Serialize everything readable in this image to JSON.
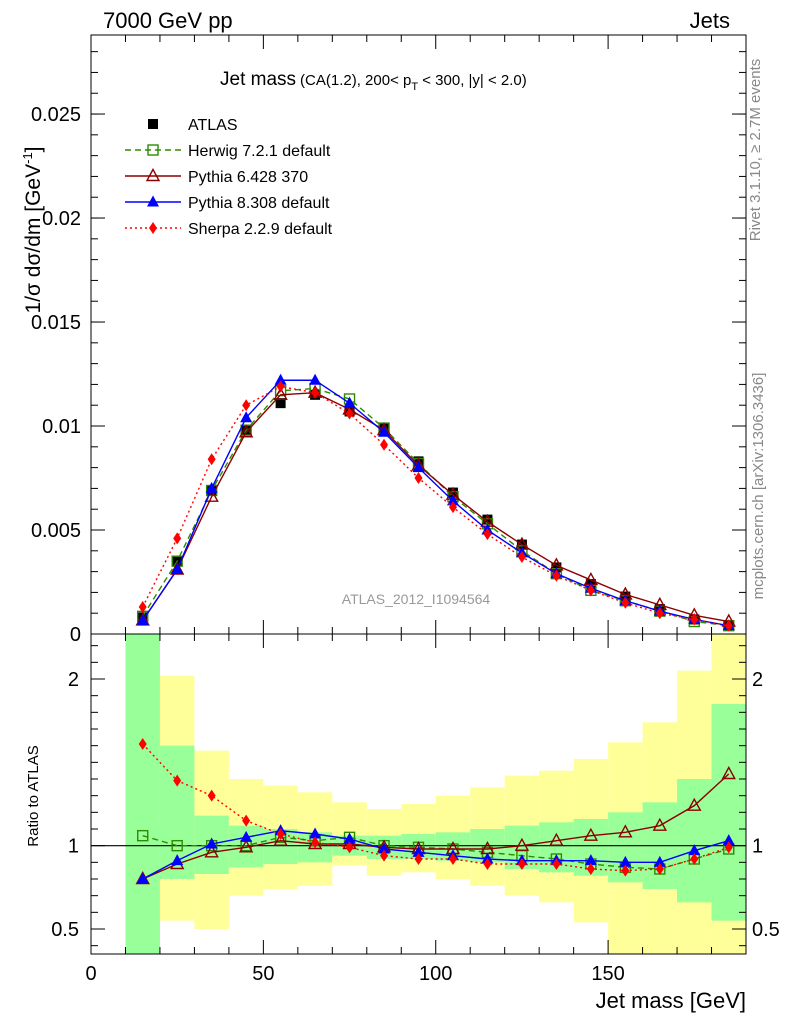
{
  "header": {
    "left": "7000 GeV pp",
    "right": "Jets"
  },
  "side_labels": {
    "rivet": "Rivet 3.1.10, ≥ 2.7M events",
    "mcplots": "mcplots.cern.ch [arXiv:1306.3436]"
  },
  "watermark": "ATLAS_2012_I1094564",
  "chart_data": [
    {
      "type": "line",
      "panel": "main",
      "title": "Jet mass",
      "subtitle_parts": {
        "a": "(CA(1.2), 200< p",
        "sub": "T",
        "b": " < 300, |y| < 2.0)"
      },
      "xlabel": "Jet mass [GeV]",
      "ylabel": "1/σ dσ/dm [GeV",
      "ylabel_sup": "-1",
      "ylabel_close": "]",
      "xlim": [
        0,
        190
      ],
      "ylim": [
        0,
        0.0288
      ],
      "y_ticks": [
        0,
        0.005,
        0.01,
        0.015,
        0.02,
        0.025
      ],
      "y_tick_labels": [
        "0",
        "0.005",
        "0.01",
        "0.015",
        "0.02",
        "0.025"
      ],
      "x_ticks": [
        0,
        50,
        100,
        150
      ],
      "x_tick_labels": [
        "0",
        "50",
        "100",
        "150"
      ],
      "legend_position": "top-left",
      "x": [
        15,
        25,
        35,
        45,
        55,
        65,
        75,
        85,
        95,
        105,
        115,
        125,
        135,
        145,
        155,
        165,
        175,
        185
      ],
      "series": [
        {
          "name": "ATLAS",
          "color": "#000000",
          "marker": "square",
          "line": "none",
          "values": [
            0.0008,
            0.0035,
            0.0069,
            0.0098,
            0.0111,
            0.0115,
            0.0107,
            0.0099,
            0.0083,
            0.0068,
            0.0055,
            0.0043,
            0.0032,
            0.0024,
            0.0018,
            0.0012,
            0.0007,
            0.0004
          ]
        },
        {
          "name": "Herwig 7.2.1 default",
          "color": "#2e8b00",
          "marker": "open-square",
          "line": "dashed",
          "values": [
            0.00085,
            0.0035,
            0.0069,
            0.0098,
            0.0117,
            0.0118,
            0.0113,
            0.0099,
            0.0082,
            0.0066,
            0.0053,
            0.004,
            0.0029,
            0.0021,
            0.0016,
            0.0011,
            0.0006,
            0.0004
          ]
        },
        {
          "name": "Pythia 6.428 370",
          "color": "#8b0000",
          "marker": "open-triangle",
          "line": "solid",
          "values": [
            0.00065,
            0.0031,
            0.0066,
            0.0097,
            0.0115,
            0.0116,
            0.0108,
            0.0098,
            0.0081,
            0.0067,
            0.0054,
            0.0043,
            0.0033,
            0.0026,
            0.0019,
            0.0014,
            0.0009,
            0.0006
          ]
        },
        {
          "name": "Pythia 8.308 default",
          "color": "#0000ff",
          "marker": "triangle",
          "line": "solid",
          "values": [
            0.00065,
            0.0031,
            0.007,
            0.0104,
            0.0122,
            0.0122,
            0.0111,
            0.0097,
            0.008,
            0.0064,
            0.005,
            0.0039,
            0.0029,
            0.0022,
            0.0016,
            0.0011,
            0.0007,
            0.0004
          ]
        },
        {
          "name": "Sherpa 2.2.9 default",
          "color": "#ff0000",
          "marker": "diamond",
          "line": "dotted",
          "values": [
            0.0013,
            0.0046,
            0.0084,
            0.011,
            0.0119,
            0.0116,
            0.0106,
            0.0091,
            0.0075,
            0.0061,
            0.0048,
            0.0037,
            0.0028,
            0.0021,
            0.0015,
            0.001,
            0.0007,
            0.0004
          ]
        }
      ]
    },
    {
      "type": "line",
      "panel": "ratio",
      "ylabel": "Ratio to ATLAS",
      "xlim": [
        0,
        190
      ],
      "ylim": [
        0.35,
        2.27
      ],
      "y_ticks": [
        0.5,
        1,
        2
      ],
      "y_tick_labels": [
        "0.5",
        "1",
        "2"
      ],
      "reference_line": 1,
      "bins": [
        [
          10,
          20
        ],
        [
          20,
          30
        ],
        [
          30,
          40
        ],
        [
          40,
          50
        ],
        [
          50,
          60
        ],
        [
          60,
          70
        ],
        [
          70,
          80
        ],
        [
          80,
          90
        ],
        [
          90,
          100
        ],
        [
          100,
          110
        ],
        [
          110,
          120
        ],
        [
          120,
          130
        ],
        [
          130,
          140
        ],
        [
          140,
          150
        ],
        [
          150,
          160
        ],
        [
          160,
          170
        ],
        [
          170,
          180
        ],
        [
          180,
          190
        ]
      ],
      "band_inner": [
        [
          0.35,
          2.27
        ],
        [
          0.8,
          1.6
        ],
        [
          0.83,
          1.18
        ],
        [
          0.87,
          1.12
        ],
        [
          0.89,
          1.1
        ],
        [
          0.9,
          1.08
        ],
        [
          0.94,
          1.06
        ],
        [
          0.92,
          1.06
        ],
        [
          0.92,
          1.07
        ],
        [
          0.91,
          1.08
        ],
        [
          0.9,
          1.1
        ],
        [
          0.86,
          1.12
        ],
        [
          0.84,
          1.14
        ],
        [
          0.82,
          1.16
        ],
        [
          0.78,
          1.2
        ],
        [
          0.74,
          1.26
        ],
        [
          0.66,
          1.4
        ],
        [
          0.55,
          1.85
        ]
      ],
      "band_outer": [
        [
          0.35,
          2.27
        ],
        [
          0.55,
          2.02
        ],
        [
          0.5,
          1.57
        ],
        [
          0.7,
          1.4
        ],
        [
          0.74,
          1.36
        ],
        [
          0.76,
          1.32
        ],
        [
          0.88,
          1.26
        ],
        [
          0.82,
          1.22
        ],
        [
          0.84,
          1.25
        ],
        [
          0.8,
          1.3
        ],
        [
          0.76,
          1.35
        ],
        [
          0.7,
          1.42
        ],
        [
          0.66,
          1.45
        ],
        [
          0.54,
          1.52
        ],
        [
          0.35,
          1.62
        ],
        [
          0.35,
          1.74
        ],
        [
          0.35,
          2.05
        ],
        [
          0.35,
          2.27
        ]
      ],
      "band_colors": {
        "outer": "#ffff99",
        "inner": "#99ff99"
      },
      "x": [
        15,
        25,
        35,
        45,
        55,
        65,
        75,
        85,
        95,
        105,
        115,
        125,
        135,
        145,
        155,
        165,
        175,
        185
      ],
      "series": [
        {
          "name": "Herwig 7.2.1 default",
          "color": "#2e8b00",
          "marker": "open-square",
          "line": "dashed",
          "values": [
            1.06,
            1.0,
            1.0,
            1.0,
            1.05,
            1.03,
            1.05,
            1.0,
            0.99,
            0.98,
            0.96,
            0.94,
            0.92,
            0.89,
            0.87,
            0.86,
            0.92,
            0.98
          ]
        },
        {
          "name": "Pythia 6.428 370",
          "color": "#8b0000",
          "marker": "open-triangle",
          "line": "solid",
          "values": [
            0.8,
            0.89,
            0.96,
            0.99,
            1.03,
            1.01,
            1.01,
            0.99,
            0.98,
            0.98,
            0.98,
            1.0,
            1.03,
            1.06,
            1.08,
            1.12,
            1.24,
            1.43
          ]
        },
        {
          "name": "Pythia 8.308 default",
          "color": "#0000ff",
          "marker": "triangle",
          "line": "solid",
          "values": [
            0.8,
            0.91,
            1.01,
            1.05,
            1.09,
            1.07,
            1.04,
            0.98,
            0.96,
            0.94,
            0.92,
            0.91,
            0.91,
            0.91,
            0.9,
            0.9,
            0.97,
            1.03
          ]
        },
        {
          "name": "Sherpa 2.2.9 default",
          "color": "#ff0000",
          "marker": "diamond",
          "line": "dotted",
          "values": [
            1.61,
            1.39,
            1.3,
            1.15,
            1.07,
            1.02,
            0.99,
            0.94,
            0.92,
            0.92,
            0.89,
            0.89,
            0.89,
            0.86,
            0.85,
            0.86,
            0.92,
            0.99
          ]
        }
      ]
    }
  ]
}
